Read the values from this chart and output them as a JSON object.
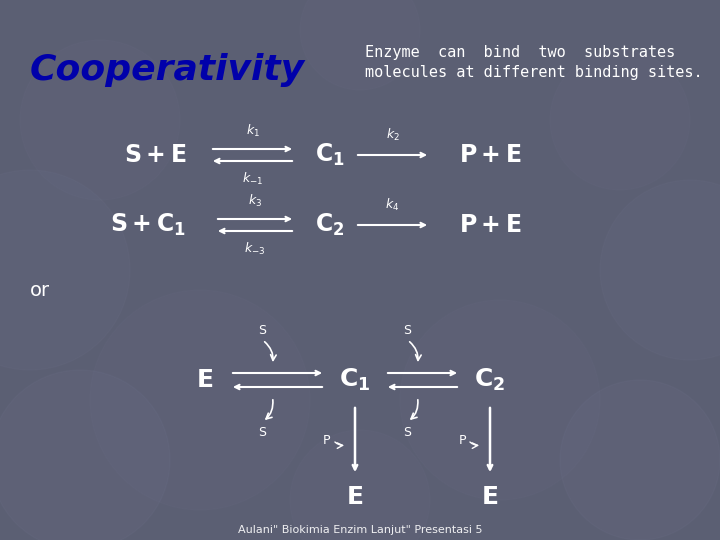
{
  "bg_color": "#5b5f73",
  "title": "Cooperativity",
  "title_color": "#0000aa",
  "title_fontsize": 26,
  "subtitle_line1": "Enzyme  can  bind  two  substrates",
  "subtitle_line2": "molecules at different binding sites.",
  "subtitle_color": "#ffffff",
  "subtitle_fontsize": 11,
  "text_color": "#ffffff",
  "footer": "Aulani\" Biokimia Enzim Lanjut\" Presentasi 5",
  "footer_fontsize": 8,
  "row1_terms": [
    "S+E",
    "C1",
    "P+E"
  ],
  "row2_terms": [
    "S+C1",
    "C2",
    "P+E"
  ],
  "k_labels": [
    "k_1",
    "k_{-1}",
    "k_2",
    "k_3",
    "k_{-3}",
    "k_4"
  ],
  "or_label": "or",
  "bottom_labels_left": [
    "E",
    "C1",
    "C2"
  ],
  "bottom_labels_right": [
    "E",
    "E"
  ],
  "s_label": "S",
  "p_label": "P"
}
